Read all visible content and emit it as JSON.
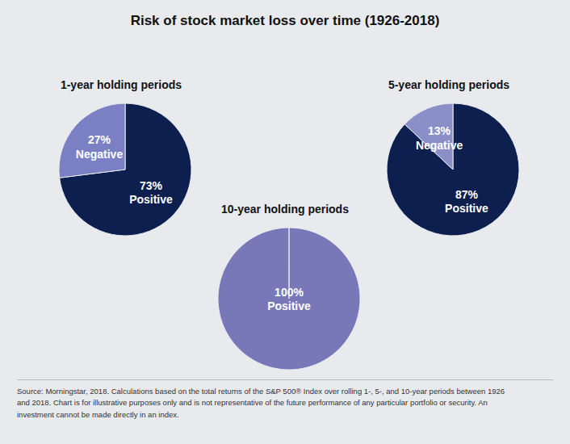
{
  "title": "Risk of stock market loss over time (1926-2018)",
  "footnote": "Source: Morningstar, 2018. Calculations based on the total returns of the S&P 500® Index over rolling 1-, 5-, and 10-year periods between 1926\nand 2018. Chart is for illustrative purposes only and is not representative of the future performance of any particular portfolio or security. An\ninvestment cannot be made directly in an index.",
  "chart_data": [
    {
      "type": "pie",
      "subtitle": "1-year holding periods",
      "categories": [
        "Positive",
        "Negative"
      ],
      "values": [
        73,
        27
      ],
      "value_labels": [
        "73%",
        "27%"
      ],
      "colors": [
        "#0d1f4e",
        "#7b7fc4"
      ],
      "data_labels": true
    },
    {
      "type": "pie",
      "subtitle": "5-year holding periods",
      "categories": [
        "Positive",
        "Negative"
      ],
      "values": [
        87,
        13
      ],
      "value_labels": [
        "87%",
        "13%"
      ],
      "colors": [
        "#0d1f4e",
        "#8b8fc8"
      ],
      "data_labels": true
    },
    {
      "type": "pie",
      "subtitle": "10-year holding periods",
      "categories": [
        "Positive"
      ],
      "values": [
        100
      ],
      "value_labels": [
        "100%"
      ],
      "colors": [
        "#7878b8"
      ],
      "data_labels": true
    }
  ]
}
